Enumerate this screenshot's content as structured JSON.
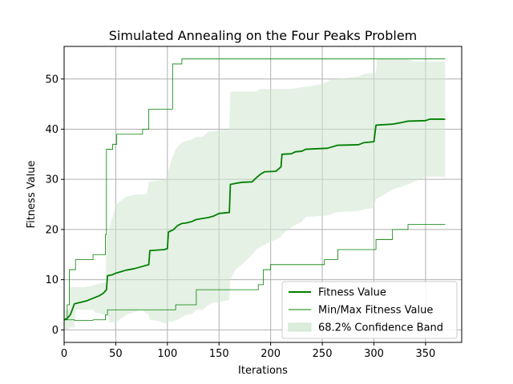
{
  "chart_data": {
    "type": "line",
    "title": "Simulated Annealing on the Four Peaks Problem",
    "xlabel": "Iterations",
    "ylabel": "Fitness Value",
    "xlim": [
      0,
      385
    ],
    "ylim": [
      -2.5,
      56.5
    ],
    "xticks": [
      0,
      50,
      100,
      150,
      200,
      250,
      300,
      350
    ],
    "yticks": [
      0,
      10,
      20,
      30,
      40,
      50
    ],
    "grid": true,
    "legend_position": "lower-right",
    "colors": {
      "mean": "#008000",
      "minmax": "#008000",
      "band": "#cfe6cf",
      "grid": "#b0b0b0"
    },
    "series": [
      {
        "name": "Fitness Value",
        "kind": "mean-line",
        "points": [
          [
            0,
            2
          ],
          [
            3,
            2.3
          ],
          [
            6,
            3
          ],
          [
            10,
            5.2
          ],
          [
            16,
            5.5
          ],
          [
            22,
            5.8
          ],
          [
            28,
            6.3
          ],
          [
            34,
            6.8
          ],
          [
            38,
            7.3
          ],
          [
            41,
            8
          ],
          [
            42,
            10.8
          ],
          [
            47,
            11
          ],
          [
            50,
            11.3
          ],
          [
            55,
            11.6
          ],
          [
            60,
            11.9
          ],
          [
            68,
            12.2
          ],
          [
            75,
            12.6
          ],
          [
            82,
            13
          ],
          [
            83,
            15.8
          ],
          [
            90,
            15.9
          ],
          [
            97,
            16
          ],
          [
            100,
            16.2
          ],
          [
            101,
            19.5
          ],
          [
            106,
            20
          ],
          [
            110,
            20.8
          ],
          [
            114,
            21.2
          ],
          [
            118,
            21.3
          ],
          [
            124,
            21.6
          ],
          [
            128,
            22
          ],
          [
            134,
            22.2
          ],
          [
            140,
            22.4
          ],
          [
            145,
            22.7
          ],
          [
            150,
            23.2
          ],
          [
            160,
            23.4
          ],
          [
            161,
            29
          ],
          [
            166,
            29.2
          ],
          [
            172,
            29.4
          ],
          [
            182,
            29.5
          ],
          [
            186,
            30.3
          ],
          [
            190,
            31
          ],
          [
            194,
            31.5
          ],
          [
            205,
            31.6
          ],
          [
            210,
            32.5
          ],
          [
            211,
            35
          ],
          [
            220,
            35.1
          ],
          [
            224,
            35.5
          ],
          [
            230,
            35.6
          ],
          [
            234,
            36
          ],
          [
            255,
            36.2
          ],
          [
            265,
            36.8
          ],
          [
            285,
            36.9
          ],
          [
            290,
            37.3
          ],
          [
            300,
            37.5
          ],
          [
            302,
            40.8
          ],
          [
            318,
            41
          ],
          [
            326,
            41.3
          ],
          [
            333,
            41.6
          ],
          [
            350,
            41.7
          ],
          [
            354,
            42
          ],
          [
            369,
            42
          ]
        ]
      },
      {
        "name": "Min/Max Fitness Value",
        "kind": "max-line",
        "points": [
          [
            0,
            2
          ],
          [
            3,
            2
          ],
          [
            3,
            5
          ],
          [
            5,
            5
          ],
          [
            5,
            12
          ],
          [
            11,
            12
          ],
          [
            11,
            14
          ],
          [
            28,
            14
          ],
          [
            28,
            15
          ],
          [
            40,
            15
          ],
          [
            40,
            19
          ],
          [
            41,
            19
          ],
          [
            41,
            36
          ],
          [
            47,
            36
          ],
          [
            47,
            37
          ],
          [
            51,
            37
          ],
          [
            51,
            39
          ],
          [
            76,
            39
          ],
          [
            76,
            40
          ],
          [
            82,
            40
          ],
          [
            82,
            44
          ],
          [
            105,
            44
          ],
          [
            105,
            53
          ],
          [
            114,
            53
          ],
          [
            114,
            54
          ],
          [
            369,
            54
          ]
        ]
      },
      {
        "name": "",
        "kind": "min-line",
        "points": [
          [
            0,
            2
          ],
          [
            10,
            2
          ],
          [
            10,
            1.9
          ],
          [
            28,
            1.9
          ],
          [
            28,
            2
          ],
          [
            40,
            2
          ],
          [
            40,
            3
          ],
          [
            42,
            3
          ],
          [
            42,
            4
          ],
          [
            108,
            4
          ],
          [
            108,
            5
          ],
          [
            128,
            5
          ],
          [
            128,
            8
          ],
          [
            188,
            8
          ],
          [
            188,
            9
          ],
          [
            193,
            9
          ],
          [
            193,
            12
          ],
          [
            200,
            12
          ],
          [
            200,
            13
          ],
          [
            252,
            13
          ],
          [
            252,
            14
          ],
          [
            265,
            14
          ],
          [
            265,
            16
          ],
          [
            302,
            16
          ],
          [
            302,
            18
          ],
          [
            318,
            18
          ],
          [
            318,
            20
          ],
          [
            333,
            20
          ],
          [
            333,
            21
          ],
          [
            369,
            21
          ]
        ]
      },
      {
        "name": "68.2% Confidence Band",
        "kind": "band",
        "upper": [
          [
            0,
            4
          ],
          [
            5,
            4
          ],
          [
            5,
            8.5
          ],
          [
            20,
            8.5
          ],
          [
            40,
            9.5
          ],
          [
            41,
            18
          ],
          [
            44,
            20.5
          ],
          [
            46,
            22
          ],
          [
            47,
            22.5
          ],
          [
            50,
            25
          ],
          [
            60,
            26.5
          ],
          [
            70,
            27
          ],
          [
            80,
            27
          ],
          [
            82,
            29.5
          ],
          [
            98,
            30
          ],
          [
            100,
            31
          ],
          [
            104,
            34
          ],
          [
            108,
            36
          ],
          [
            112,
            37
          ],
          [
            116,
            37.5
          ],
          [
            124,
            38
          ],
          [
            128,
            38.5
          ],
          [
            134,
            38.5
          ],
          [
            140,
            39.5
          ],
          [
            160,
            40
          ],
          [
            161,
            47.5
          ],
          [
            186,
            47.5
          ],
          [
            190,
            48
          ],
          [
            220,
            48
          ],
          [
            250,
            49
          ],
          [
            260,
            50
          ],
          [
            265,
            50
          ],
          [
            285,
            50.5
          ],
          [
            290,
            51
          ],
          [
            302,
            51.3
          ],
          [
            303,
            54
          ],
          [
            318,
            54
          ],
          [
            330,
            54
          ],
          [
            340,
            53.5
          ],
          [
            369,
            53.5
          ]
        ],
        "lower": [
          [
            0,
            0
          ],
          [
            5,
            0
          ],
          [
            5,
            0.5
          ],
          [
            10,
            0.5
          ],
          [
            11,
            4
          ],
          [
            28,
            4
          ],
          [
            30,
            3.5
          ],
          [
            40,
            3
          ],
          [
            41,
            3.2
          ],
          [
            42,
            3
          ],
          [
            44,
            1.5
          ],
          [
            50,
            1.5
          ],
          [
            60,
            3
          ],
          [
            75,
            4
          ],
          [
            82,
            3
          ],
          [
            83,
            2
          ],
          [
            90,
            1.8
          ],
          [
            100,
            1.2
          ],
          [
            101,
            1.5
          ],
          [
            110,
            2
          ],
          [
            118,
            3
          ],
          [
            124,
            3.2
          ],
          [
            128,
            4
          ],
          [
            134,
            4
          ],
          [
            140,
            5
          ],
          [
            145,
            5.5
          ],
          [
            150,
            5.5
          ],
          [
            160,
            6
          ],
          [
            161,
            10
          ],
          [
            166,
            12
          ],
          [
            172,
            13
          ],
          [
            182,
            15
          ],
          [
            186,
            16
          ],
          [
            194,
            17
          ],
          [
            205,
            18
          ],
          [
            210,
            18.5
          ],
          [
            211,
            19
          ],
          [
            220,
            20.5
          ],
          [
            230,
            21.5
          ],
          [
            234,
            22.5
          ],
          [
            255,
            22.8
          ],
          [
            265,
            23.5
          ],
          [
            285,
            23.7
          ],
          [
            290,
            24
          ],
          [
            300,
            24.3
          ],
          [
            302,
            26
          ],
          [
            318,
            28
          ],
          [
            326,
            28.5
          ],
          [
            333,
            29
          ],
          [
            350,
            30.5
          ],
          [
            369,
            30.5
          ]
        ]
      }
    ],
    "legend": [
      {
        "label": "Fitness Value",
        "kind": "mean"
      },
      {
        "label": "Min/Max Fitness Value",
        "kind": "minmax"
      },
      {
        "label": "68.2% Confidence Band",
        "kind": "band"
      }
    ]
  }
}
